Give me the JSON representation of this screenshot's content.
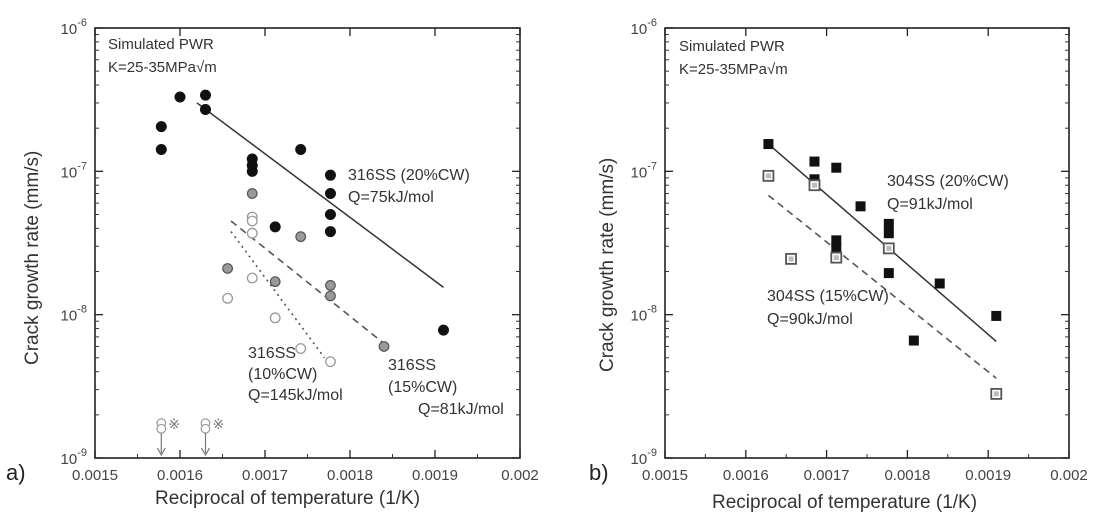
{
  "chart_data": [
    {
      "panel_label": "a)",
      "type": "scatter",
      "y_scale": "log",
      "xlim": [
        0.0015,
        0.002
      ],
      "ylim": [
        1e-09,
        1e-06
      ],
      "xlabel": "Reciprocal of temperature (1/K)",
      "ylabel": "Crack growth rate (mm/s)",
      "x_ticks": [
        "0.0015",
        "0.0016",
        "0.0017",
        "0.0018",
        "0.0019",
        "0.002"
      ],
      "y_ticks": [
        {
          "base": "10",
          "exp": "-9"
        },
        {
          "base": "10",
          "exp": "-8"
        },
        {
          "base": "10",
          "exp": "-7"
        },
        {
          "base": "10",
          "exp": "-6"
        }
      ],
      "annotation_lines": [
        "Simulated PWR",
        "K=25-35MPa√m"
      ],
      "arrow_markers": "※",
      "series": [
        {
          "name_lines": [
            "316SS (20%CW)",
            "Q=75kJ/mol"
          ],
          "marker": "filled-circle",
          "color": "#111111",
          "line_style": "solid",
          "fit": [
            [
              0.00162,
              3e-07
            ],
            [
              0.00191,
              1.55e-08
            ]
          ],
          "points": [
            [
              0.001578,
              2.05e-07
            ],
            [
              0.001578,
              1.42e-07
            ],
            [
              0.0016,
              3.3e-07
            ],
            [
              0.00163,
              3.4e-07
            ],
            [
              0.00163,
              2.7e-07
            ],
            [
              0.001685,
              1.22e-07
            ],
            [
              0.001685,
              1.1e-07
            ],
            [
              0.001685,
              1e-07
            ],
            [
              0.001712,
              4.1e-08
            ],
            [
              0.001742,
              1.42e-07
            ],
            [
              0.001777,
              9.4e-08
            ],
            [
              0.001777,
              7e-08
            ],
            [
              0.001777,
              5e-08
            ],
            [
              0.001777,
              3.8e-08
            ],
            [
              0.00191,
              7.8e-09
            ]
          ]
        },
        {
          "name_lines": [
            "316SS",
            "(15%CW)",
            "Q=81kJ/mol"
          ],
          "marker": "gray-circle",
          "color": "#888888",
          "line_style": "dashed",
          "fit": [
            [
              0.00166,
              4.5e-08
            ],
            [
              0.00184,
              6.3e-09
            ]
          ],
          "points": [
            [
              0.001656,
              2.1e-08
            ],
            [
              0.001685,
              7e-08
            ],
            [
              0.001712,
              1.7e-08
            ],
            [
              0.001742,
              3.5e-08
            ],
            [
              0.001777,
              1.6e-08
            ],
            [
              0.001777,
              1.35e-08
            ],
            [
              0.00184,
              6e-09
            ]
          ]
        },
        {
          "name_lines": [
            "316SS",
            "(10%CW)",
            "Q=145kJ/mol"
          ],
          "marker": "open-circle",
          "color": "#888888",
          "line_style": "dotted",
          "fit": [
            [
              0.00166,
              3.8e-08
            ],
            [
              0.00177,
              5e-09
            ]
          ],
          "points": [
            [
              0.001656,
              1.3e-08
            ],
            [
              0.001685,
              4.8e-08
            ],
            [
              0.001685,
              4.5e-08
            ],
            [
              0.001685,
              3.7e-08
            ],
            [
              0.001685,
              1.8e-08
            ],
            [
              0.001712,
              9.5e-09
            ],
            [
              0.001742,
              5.8e-09
            ],
            [
              0.001777,
              4.7e-09
            ]
          ]
        }
      ],
      "below_detection": [
        [
          0.001578,
          1.75e-09
        ],
        [
          0.001578,
          1.6e-09
        ],
        [
          0.00163,
          1.75e-09
        ],
        [
          0.00163,
          1.6e-09
        ]
      ]
    },
    {
      "panel_label": "b)",
      "type": "scatter",
      "y_scale": "log",
      "xlim": [
        0.0015,
        0.002
      ],
      "ylim": [
        1e-09,
        1e-06
      ],
      "xlabel": "Reciprocal of temperature (1/K)",
      "ylabel": "Crack growth rate (mm/s)",
      "x_ticks": [
        "0.0015",
        "0.0016",
        "0.0017",
        "0.0018",
        "0.0019",
        "0.002"
      ],
      "y_ticks": [
        {
          "base": "10",
          "exp": "-9"
        },
        {
          "base": "10",
          "exp": "-8"
        },
        {
          "base": "10",
          "exp": "-7"
        },
        {
          "base": "10",
          "exp": "-6"
        }
      ],
      "annotation_lines": [
        "Simulated PWR",
        "K=25-35MPa√m"
      ],
      "series": [
        {
          "name_lines": [
            "304SS (20%CW)",
            "Q=91kJ/mol"
          ],
          "marker": "filled-square",
          "color": "#111111",
          "line_style": "solid",
          "fit": [
            [
              0.001628,
              1.55e-07
            ],
            [
              0.00191,
              6.5e-09
            ]
          ],
          "points": [
            [
              0.001628,
              1.55e-07
            ],
            [
              0.001685,
              1.17e-07
            ],
            [
              0.001685,
              8.8e-08
            ],
            [
              0.001712,
              1.06e-07
            ],
            [
              0.001712,
              3.3e-08
            ],
            [
              0.001712,
              2.9e-08
            ],
            [
              0.001742,
              5.7e-08
            ],
            [
              0.001777,
              4.3e-08
            ],
            [
              0.001777,
              3.7e-08
            ],
            [
              0.001777,
              1.95e-08
            ],
            [
              0.001808,
              6.6e-09
            ],
            [
              0.00184,
              1.65e-08
            ],
            [
              0.00191,
              9.8e-09
            ]
          ]
        },
        {
          "name_lines": [
            "304SS (15%CW)",
            "Q=90kJ/mol"
          ],
          "marker": "open-square",
          "color": "#444444",
          "line_style": "dashed",
          "fit": [
            [
              0.001628,
              6.8e-08
            ],
            [
              0.00191,
              3.6e-09
            ]
          ],
          "points": [
            [
              0.001628,
              9.3e-08
            ],
            [
              0.001656,
              2.45e-08
            ],
            [
              0.001685,
              8e-08
            ],
            [
              0.001712,
              2.5e-08
            ],
            [
              0.001777,
              2.9e-08
            ],
            [
              0.00191,
              2.8e-09
            ]
          ]
        }
      ]
    }
  ]
}
